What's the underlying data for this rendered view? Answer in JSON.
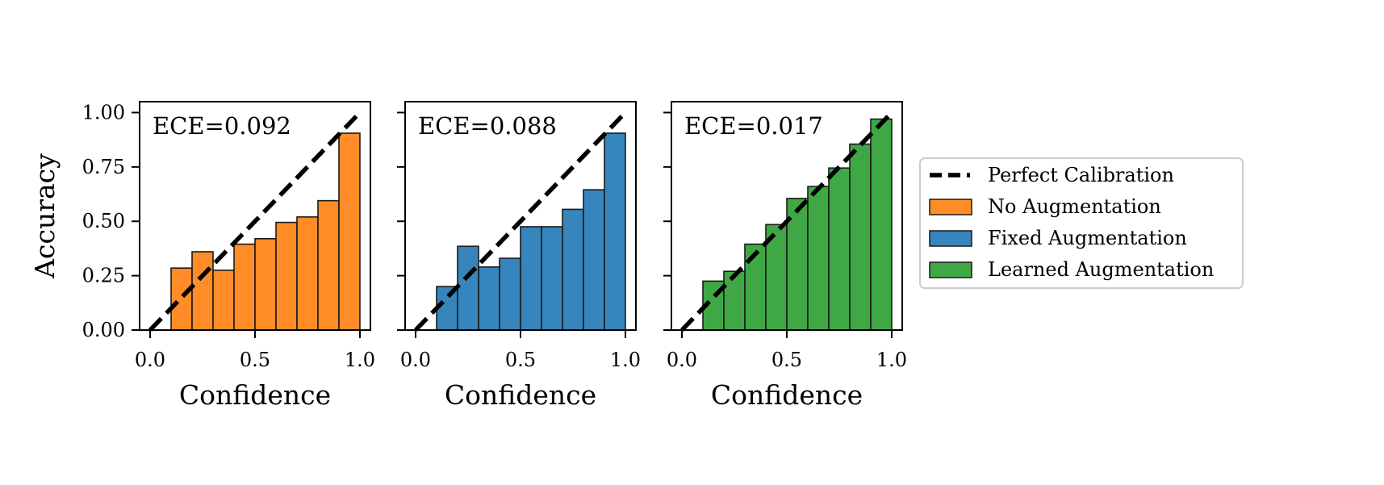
{
  "chart_data": [
    {
      "type": "bar",
      "panel": "left",
      "bin_edges": [
        0.1,
        0.2,
        0.3,
        0.4,
        0.5,
        0.6,
        0.7,
        0.8,
        0.9,
        1.0
      ],
      "values": [
        0.285,
        0.36,
        0.275,
        0.395,
        0.42,
        0.495,
        0.52,
        0.595,
        0.905
      ],
      "annotation": "ECE=0.092",
      "series_name": "No Augmentation",
      "color": "#ff8c26",
      "xlabel": "Confidence",
      "ylabel": "Accuracy",
      "xlim": [
        -0.05,
        1.05
      ],
      "ylim": [
        0,
        1.05
      ],
      "xticks": [
        "0.0",
        "0.5",
        "1.0"
      ],
      "yticks": [
        "0.00",
        "0.25",
        "0.50",
        "0.75",
        "1.00"
      ]
    },
    {
      "type": "bar",
      "panel": "middle",
      "bin_edges": [
        0.1,
        0.2,
        0.3,
        0.4,
        0.5,
        0.6,
        0.7,
        0.8,
        0.9,
        1.0
      ],
      "values": [
        0.2,
        0.385,
        0.29,
        0.33,
        0.475,
        0.475,
        0.555,
        0.645,
        0.905
      ],
      "annotation": "ECE=0.088",
      "series_name": "Fixed Augmentation",
      "color": "#3685bc",
      "xlabel": "Confidence",
      "xlim": [
        -0.05,
        1.05
      ],
      "ylim": [
        0,
        1.05
      ],
      "xticks": [
        "0.0",
        "0.5",
        "1.0"
      ]
    },
    {
      "type": "bar",
      "panel": "right",
      "bin_edges": [
        0.1,
        0.2,
        0.3,
        0.4,
        0.5,
        0.6,
        0.7,
        0.8,
        0.9,
        1.0
      ],
      "values": [
        0.225,
        0.27,
        0.395,
        0.485,
        0.605,
        0.66,
        0.745,
        0.855,
        0.97
      ],
      "annotation": "ECE=0.017",
      "series_name": "Learned Augmentation",
      "color": "#3fa845",
      "xlabel": "Confidence",
      "xlim": [
        -0.05,
        1.05
      ],
      "ylim": [
        0,
        1.05
      ],
      "xticks": [
        "0.0",
        "0.5",
        "1.0"
      ]
    }
  ],
  "legend": {
    "position": "right",
    "items": [
      {
        "label": "Perfect Calibration",
        "kind": "dashed-line",
        "color": "#000000"
      },
      {
        "label": "No Augmentation",
        "kind": "patch",
        "color": "#ff8c26"
      },
      {
        "label": "Fixed Augmentation",
        "kind": "patch",
        "color": "#3685bc"
      },
      {
        "label": "Learned Augmentation",
        "kind": "patch",
        "color": "#3fa845"
      }
    ]
  }
}
